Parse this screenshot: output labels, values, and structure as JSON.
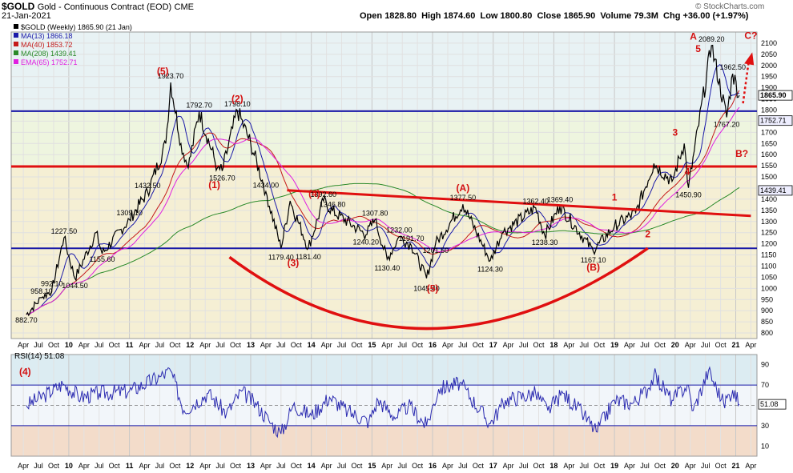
{
  "header": {
    "symbol": "$GOLD",
    "description": "Gold - Continuous Contract (EOD)",
    "exchange": "CME",
    "date": "21-Jan-2021",
    "open_label": "Open",
    "open": "1828.80",
    "high_label": "High",
    "high": "1874.60",
    "low_label": "Low",
    "low": "1800.80",
    "close_label": "Close",
    "close": "1865.90",
    "volume_label": "Volume",
    "volume": "79.3M",
    "chg_label": "Chg",
    "chg": "+36.00 (+1.97%)",
    "watermark": "© StockCharts.com"
  },
  "legend": [
    {
      "text": "$GOLD (Weekly) 1865.90 (21 Jan)",
      "color": "#000000"
    },
    {
      "text": "MA(13) 1866.18",
      "color": "#1a1aa8"
    },
    {
      "text": "MA(40) 1853.72",
      "color": "#c41a1a"
    },
    {
      "text": "MA(208) 1439.41",
      "color": "#2a8a2a"
    },
    {
      "text": "EMA(65) 1752.71",
      "color": "#e020e0"
    }
  ],
  "chart_data": [
    {
      "type": "line",
      "title": "$GOLD (Weekly)",
      "ylim": [
        775,
        2150
      ],
      "x_tick_labels": [
        "Apr",
        "Jul",
        "Oct",
        "10",
        "Apr",
        "Jul",
        "Oct",
        "11",
        "Apr",
        "Jul",
        "Oct",
        "12",
        "Apr",
        "Jul",
        "Oct",
        "13",
        "Apr",
        "Jul",
        "Oct",
        "14",
        "Apr",
        "Jul",
        "Oct",
        "15",
        "Apr",
        "Jul",
        "Oct",
        "16",
        "Apr",
        "Jul",
        "Oct",
        "17",
        "Apr",
        "Jul",
        "Oct",
        "18",
        "Apr",
        "Jul",
        "Oct",
        "19",
        "Apr",
        "Jul",
        "Oct",
        "20",
        "Apr",
        "Jul",
        "Oct",
        "21",
        "Apr"
      ],
      "y_ticks": [
        800,
        850,
        900,
        950,
        1000,
        1050,
        1100,
        1150,
        1200,
        1250,
        1300,
        1350,
        1400,
        1450,
        1500,
        1550,
        1600,
        1650,
        1700,
        1750,
        1800,
        1850,
        1900,
        1950,
        2000,
        2050,
        2100
      ],
      "y_tick_labels": [
        "800",
        "850",
        "900",
        "950",
        "1000",
        "1050",
        "1100",
        "1150",
        "1200",
        "1250",
        "1300",
        "1350",
        "1400",
        "1450",
        "1500",
        "1550",
        "1600",
        "1650",
        "1700",
        "1750",
        "1800",
        "1850",
        "1900",
        "1950",
        "2000",
        "2050",
        "2100"
      ],
      "price_path": [
        [
          2009.3,
          882.7
        ],
        [
          2009.55,
          958.1
        ],
        [
          2009.72,
          992.1
        ],
        [
          2009.92,
          1227.5
        ],
        [
          2010.1,
          1044.5
        ],
        [
          2010.45,
          1250
        ],
        [
          2010.55,
          1155.6
        ],
        [
          2011.0,
          1309.1
        ],
        [
          2011.3,
          1432.5
        ],
        [
          2011.6,
          1650
        ],
        [
          2011.68,
          1923.7
        ],
        [
          2011.85,
          1650
        ],
        [
          2011.97,
          1540
        ],
        [
          2012.15,
          1792.7
        ],
        [
          2012.45,
          1540
        ],
        [
          2012.53,
          1526.7
        ],
        [
          2012.78,
          1798.1
        ],
        [
          2013.0,
          1650
        ],
        [
          2013.25,
          1434.0
        ],
        [
          2013.5,
          1179.4
        ],
        [
          2013.65,
          1392.6
        ],
        [
          2013.95,
          1181.4
        ],
        [
          2014.2,
          1392.6
        ],
        [
          2014.35,
          1346.8
        ],
        [
          2014.9,
          1240.2
        ],
        [
          2015.05,
          1307.8
        ],
        [
          2015.25,
          1130.4
        ],
        [
          2015.45,
          1232.0
        ],
        [
          2015.65,
          1191.7
        ],
        [
          2015.9,
          1045.4
        ],
        [
          2016.05,
          1201.5
        ],
        [
          2016.5,
          1377.5
        ],
        [
          2016.95,
          1124.3
        ],
        [
          2017.15,
          1250
        ],
        [
          2017.7,
          1362.4
        ],
        [
          2017.85,
          1238.3
        ],
        [
          2018.1,
          1369.4
        ],
        [
          2018.65,
          1167.1
        ],
        [
          2019.0,
          1280
        ],
        [
          2019.35,
          1340
        ],
        [
          2019.65,
          1560
        ],
        [
          2019.95,
          1480
        ],
        [
          2020.15,
          1650
        ],
        [
          2020.22,
          1450.9
        ],
        [
          2020.6,
          2089.2
        ],
        [
          2020.85,
          1767.2
        ],
        [
          2020.95,
          1962.5
        ],
        [
          2021.06,
          1865.9
        ]
      ],
      "price_label_values": [
        "882.70",
        "958.10",
        "992.10",
        "1227.50",
        "1044.50",
        "1155.60",
        "1309.10",
        "1432.50",
        "1923.70",
        "1792.70",
        "1526.70",
        "1798.10",
        "1434.00",
        "1179.40",
        "1392.60",
        "1181.40",
        "1346.80",
        "1240.20",
        "1307.80",
        "1130.40",
        "1232.00",
        "1191.70",
        "1045.40",
        "1201.50",
        "1377.50",
        "1124.30",
        "1362.40",
        "1238.30",
        "1369.40",
        "1167.10",
        "1450.90",
        "2089.20",
        "1962.50",
        "1767.20"
      ],
      "series": [
        {
          "name": "MA(13)",
          "last": 1866.18,
          "color": "#1a1aa8"
        },
        {
          "name": "MA(40)",
          "last": 1853.72,
          "color": "#c41a1a"
        },
        {
          "name": "MA(208)",
          "last": 1439.41,
          "color": "#2a8a2a"
        },
        {
          "name": "EMA(65)",
          "last": 1752.71,
          "color": "#e020e0"
        }
      ],
      "right_axis_tags": [
        {
          "label": "1865.90",
          "value": 1865.9
        },
        {
          "label": "1752.71",
          "value": 1752.71
        },
        {
          "label": "1439.41",
          "value": 1439.41
        }
      ],
      "horizontal_lines": [
        {
          "value": 1795,
          "color": "#1a1aa8"
        },
        {
          "value": 1547,
          "color": "#e01010"
        },
        {
          "value": 1180,
          "color": "#1a1aa8"
        }
      ],
      "trendline": {
        "from": [
          2013.6,
          1440
        ],
        "to": [
          2021.25,
          1325
        ],
        "color": "#e01010"
      },
      "cup_curve": {
        "points": [
          [
            2012.65,
            1140
          ],
          [
            2016.0,
            820
          ],
          [
            2019.55,
            1180
          ]
        ],
        "color": "#e01010"
      },
      "wave_labels": [
        "(5)",
        "(2)",
        "(1)",
        "(3)",
        "(4)",
        "(5)",
        "(A)",
        "(B)",
        "1",
        "2",
        "3",
        "4",
        "5",
        "A",
        "B?",
        "C?"
      ],
      "annotation_arrow": {
        "label": "C?",
        "color": "#e01010"
      },
      "grid": true,
      "background_bands": [
        {
          "from": 1795,
          "to": 2150,
          "color": "#e8f2f4"
        },
        {
          "from": 1547,
          "to": 1795,
          "color": "#eef5df"
        },
        {
          "from": 775,
          "to": 1547,
          "color": "#f5efd4"
        }
      ]
    },
    {
      "type": "line",
      "title": "RSI(14) 51.08",
      "ylim": [
        0,
        100
      ],
      "y_ticks": [
        10,
        30,
        50,
        70,
        90
      ],
      "y_tick_labels": [
        "10",
        "30",
        "50",
        "70",
        "90"
      ],
      "reference_lines": [
        70,
        30
      ],
      "last_value": 51.08,
      "last_label": "51.08",
      "wave_label": "(4)",
      "series_path": [
        [
          2009.3,
          50
        ],
        [
          2009.6,
          60
        ],
        [
          2009.9,
          71
        ],
        [
          2010.2,
          58
        ],
        [
          2010.5,
          62
        ],
        [
          2011.0,
          64
        ],
        [
          2011.5,
          78
        ],
        [
          2011.68,
          84
        ],
        [
          2011.9,
          45
        ],
        [
          2012.3,
          62
        ],
        [
          2012.6,
          42
        ],
        [
          2012.85,
          64
        ],
        [
          2013.1,
          50
        ],
        [
          2013.3,
          35
        ],
        [
          2013.5,
          22
        ],
        [
          2013.7,
          50
        ],
        [
          2014.0,
          40
        ],
        [
          2014.3,
          58
        ],
        [
          2014.6,
          44
        ],
        [
          2014.95,
          34
        ],
        [
          2015.1,
          55
        ],
        [
          2015.4,
          38
        ],
        [
          2015.6,
          50
        ],
        [
          2015.9,
          30
        ],
        [
          2016.1,
          66
        ],
        [
          2016.45,
          72
        ],
        [
          2016.95,
          32
        ],
        [
          2017.2,
          55
        ],
        [
          2017.7,
          62
        ],
        [
          2017.9,
          45
        ],
        [
          2018.15,
          62
        ],
        [
          2018.5,
          40
        ],
        [
          2018.7,
          24
        ],
        [
          2019.0,
          55
        ],
        [
          2019.3,
          52
        ],
        [
          2019.55,
          66
        ],
        [
          2019.65,
          80
        ],
        [
          2019.95,
          55
        ],
        [
          2020.2,
          70
        ],
        [
          2020.3,
          45
        ],
        [
          2020.55,
          84
        ],
        [
          2020.8,
          52
        ],
        [
          2020.95,
          65
        ],
        [
          2021.06,
          51.08
        ]
      ]
    }
  ]
}
